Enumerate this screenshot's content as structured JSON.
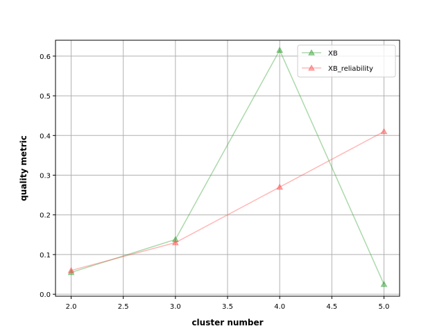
{
  "chart_data": {
    "type": "line",
    "title": "",
    "xlabel": "cluster number",
    "ylabel": "quality metric",
    "xlim": [
      1.85,
      5.15
    ],
    "ylim": [
      -0.005,
      0.64
    ],
    "x_ticks": [
      2.0,
      2.5,
      3.0,
      3.5,
      4.0,
      4.5,
      5.0
    ],
    "x_tick_labels": [
      "2.0",
      "2.5",
      "3.0",
      "3.5",
      "4.0",
      "4.5",
      "5.0"
    ],
    "y_ticks": [
      0.0,
      0.1,
      0.2,
      0.3,
      0.4,
      0.5,
      0.6
    ],
    "y_tick_labels": [
      "0.0",
      "0.1",
      "0.2",
      "0.3",
      "0.4",
      "0.5",
      "0.6"
    ],
    "grid": true,
    "legend_position": "top-right",
    "x": [
      2.0,
      3.0,
      4.0,
      5.0
    ],
    "series": [
      {
        "name": "XB",
        "values": [
          0.055,
          0.138,
          0.615,
          0.025
        ],
        "color": "#2ca02c",
        "marker": "triangle-up"
      },
      {
        "name": "XB_reliability",
        "values": [
          0.06,
          0.13,
          0.27,
          0.41
        ],
        "color": "#ff4d4d",
        "marker": "triangle-up"
      }
    ]
  }
}
